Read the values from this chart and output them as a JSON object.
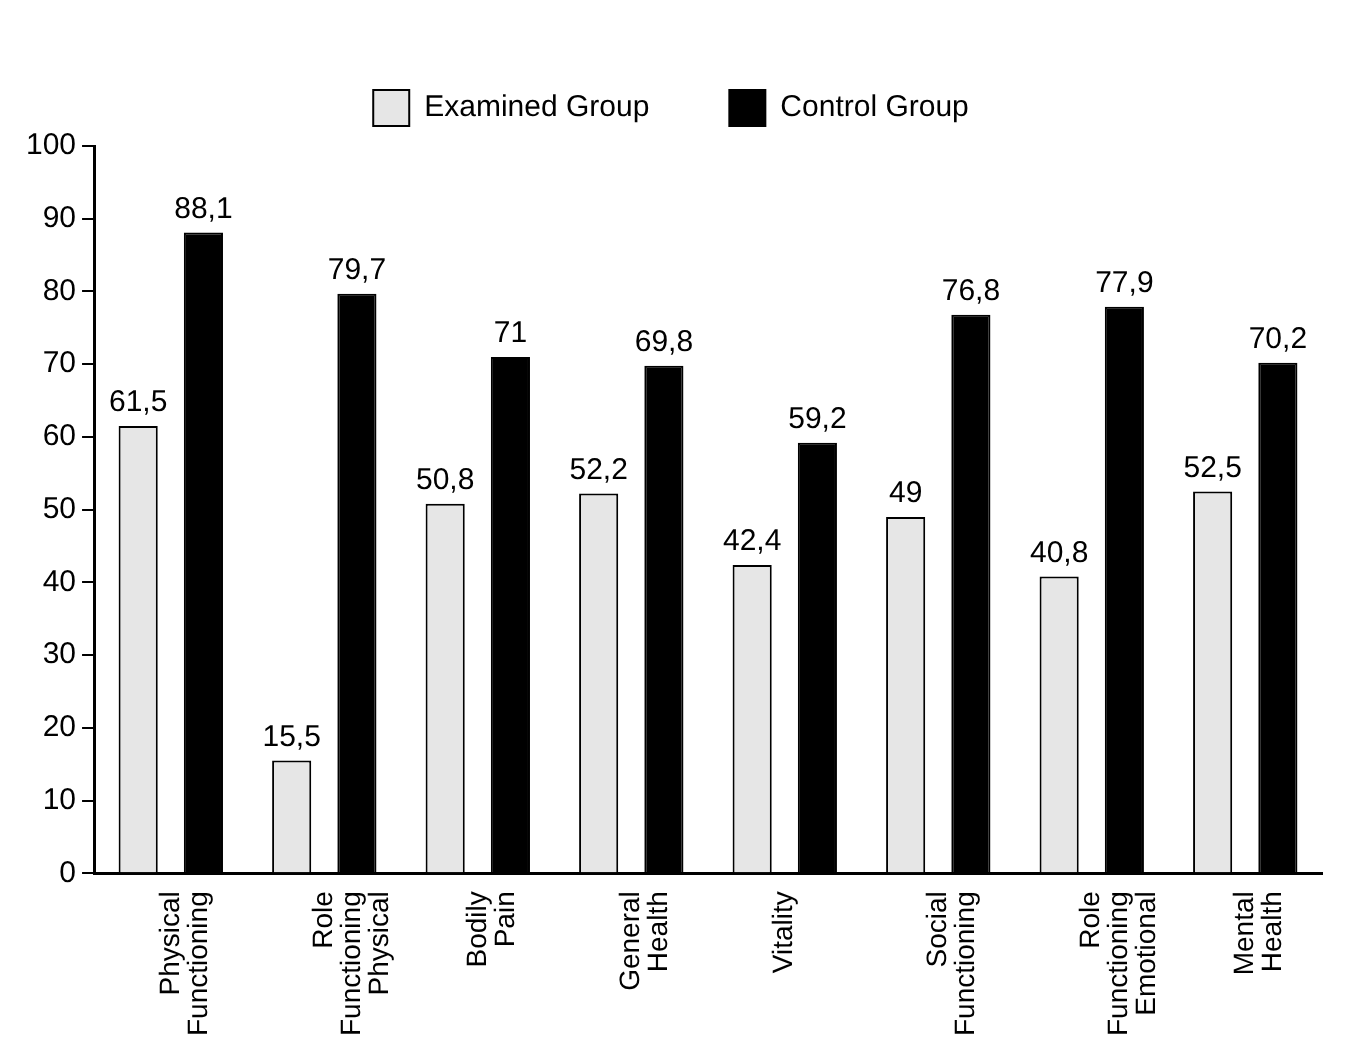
{
  "chart_data": {
    "type": "bar",
    "categories": [
      "Physical\nFunctioning",
      "Role\nFunctioning\nPhysical",
      "Bodily\nPain",
      "General\nHealth",
      "Vitality",
      "Social\nFunctioning",
      "Role\nFunctioning\nEmotional",
      "Mental\nHealth"
    ],
    "series": [
      {
        "name": "Examined Group",
        "color": "#e6e6e6",
        "values": [
          61.5,
          15.5,
          50.8,
          52.2,
          42.4,
          49,
          40.8,
          52.5
        ],
        "value_labels": [
          "61,5",
          "15,5",
          "50,8",
          "52,2",
          "42,4",
          "49",
          "40,8",
          "52,5"
        ]
      },
      {
        "name": "Control Group",
        "color": "#000000",
        "values": [
          88.1,
          79.7,
          71,
          69.8,
          59.2,
          76.8,
          77.9,
          70.2
        ],
        "value_labels": [
          "88,1",
          "79,7",
          "71",
          "69,8",
          "59,2",
          "76,8",
          "77,9",
          "70,2"
        ]
      }
    ],
    "ylim": [
      0,
      100
    ],
    "yticks": [
      0,
      10,
      20,
      30,
      40,
      50,
      60,
      70,
      80,
      90,
      100
    ],
    "grid": false,
    "legend": "top"
  }
}
